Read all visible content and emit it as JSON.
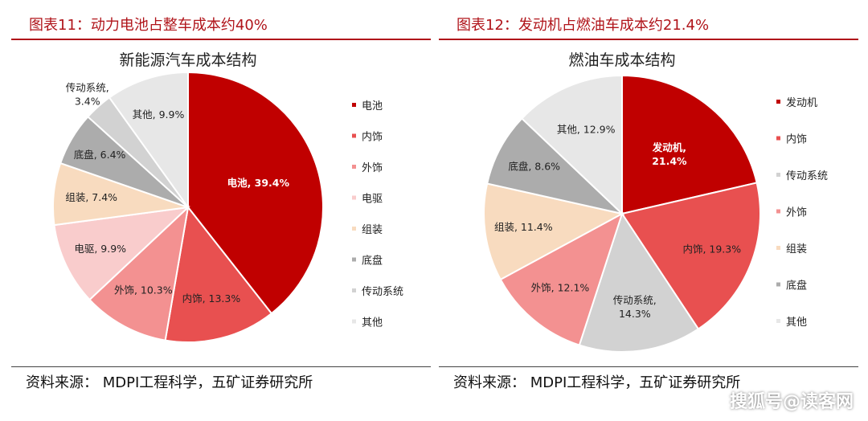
{
  "panels": [
    {
      "header": "图表11：动力电池占整车成本约40%",
      "footer": "资料来源： MDPI工程科学，五矿证券研究所"
    },
    {
      "header": "图表12：发动机占燃油车成本约21.4%",
      "footer": "资料来源： MDPI工程科学，五矿证券研究所"
    }
  ],
  "watermark": "搜狐号@读客网",
  "chart_data": [
    {
      "type": "pie",
      "title": "新能源汽车成本结构",
      "legend_position": "right",
      "slices": [
        {
          "name": "电池",
          "value": 39.4,
          "label": "电池, 39.4%",
          "color": "#c00000",
          "label_color": "#ffffff",
          "label_bold": true
        },
        {
          "name": "内饰",
          "value": 13.3,
          "label": "内饰, 13.3%",
          "color": "#e85050",
          "label_color": "#222222"
        },
        {
          "name": "外饰",
          "value": 10.3,
          "label": "外饰, 10.3%",
          "color": "#f39191",
          "label_color": "#222222"
        },
        {
          "name": "电驱",
          "value": 9.9,
          "label": "电驱, 9.9%",
          "color": "#f9cccc",
          "label_color": "#222222"
        },
        {
          "name": "组装",
          "value": 7.4,
          "label": "组装, 7.4%",
          "color": "#f8dbbf",
          "label_color": "#222222"
        },
        {
          "name": "底盘",
          "value": 6.4,
          "label": "底盘, 6.4%",
          "color": "#acacac",
          "label_color": "#222222"
        },
        {
          "name": "传动系统",
          "value": 3.4,
          "label": "传动系统,\n3.4%",
          "color": "#d2d2d2",
          "label_color": "#222222"
        },
        {
          "name": "其他",
          "value": 9.9,
          "label": "其他, 9.9%",
          "color": "#e7e7e7",
          "label_color": "#222222"
        }
      ]
    },
    {
      "type": "pie",
      "title": "燃油车成本结构",
      "legend_position": "right",
      "slices": [
        {
          "name": "发动机",
          "value": 21.4,
          "label": "发动机,\n21.4%",
          "color": "#c00000",
          "label_color": "#ffffff",
          "label_bold": true
        },
        {
          "name": "内饰",
          "value": 19.3,
          "label": "内饰, 19.3%",
          "color": "#e85050",
          "label_color": "#222222"
        },
        {
          "name": "传动系统",
          "value": 14.3,
          "label": "传动系统,\n14.3%",
          "color": "#d2d2d2",
          "label_color": "#222222"
        },
        {
          "name": "外饰",
          "value": 12.1,
          "label": "外饰, 12.1%",
          "color": "#f39191",
          "label_color": "#222222"
        },
        {
          "name": "组装",
          "value": 11.4,
          "label": "组装, 11.4%",
          "color": "#f8dbbf",
          "label_color": "#222222"
        },
        {
          "name": "底盘",
          "value": 8.6,
          "label": "底盘, 8.6%",
          "color": "#acacac",
          "label_color": "#222222"
        },
        {
          "name": "其他",
          "value": 12.9,
          "label": "其他, 12.9%",
          "color": "#e7e7e7",
          "label_color": "#222222"
        }
      ]
    }
  ]
}
